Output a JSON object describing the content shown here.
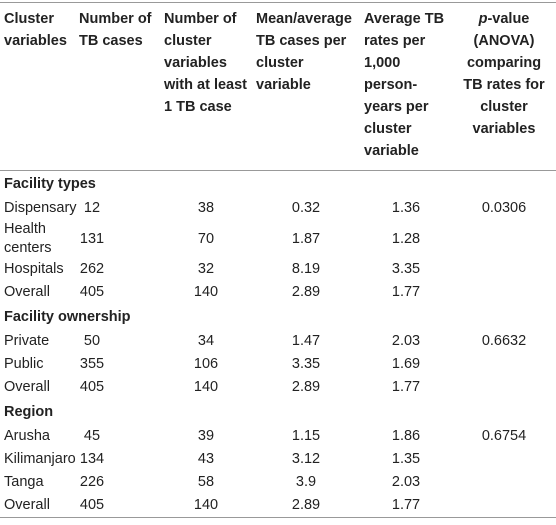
{
  "table": {
    "headers": [
      {
        "text": "Cluster variables"
      },
      {
        "text": "Number of TB cases"
      },
      {
        "text": "Number of cluster variables with at least 1 TB case"
      },
      {
        "text": "Mean/average TB cases per cluster variable"
      },
      {
        "text": "Average TB rates per 1,000 person-years per cluster variable"
      },
      {
        "italic": "p",
        "text": "-value (ANOVA) comparing TB rates for cluster variables"
      }
    ],
    "sections": [
      {
        "title": "Facility types",
        "p_value": "0.0306",
        "rows": [
          [
            "Dispensary",
            "12",
            "38",
            "0.32",
            "1.36"
          ],
          [
            "Health centers",
            "131",
            "70",
            "1.87",
            "1.28"
          ],
          [
            "Hospitals",
            "262",
            "32",
            "8.19",
            "3.35"
          ],
          [
            "Overall",
            "405",
            "140",
            "2.89",
            "1.77"
          ]
        ]
      },
      {
        "title": "Facility ownership",
        "p_value": "0.6632",
        "rows": [
          [
            "Private",
            "50",
            "34",
            "1.47",
            "2.03"
          ],
          [
            "Public",
            "355",
            "106",
            "3.35",
            "1.69"
          ],
          [
            "Overall",
            "405",
            "140",
            "2.89",
            "1.77"
          ]
        ]
      },
      {
        "title": "Region",
        "p_value": "0.6754",
        "rows": [
          [
            "Arusha",
            "45",
            "39",
            "1.15",
            "1.86"
          ],
          [
            "Kilimanjaro",
            "134",
            "43",
            "3.12",
            "1.35"
          ],
          [
            "Tanga",
            "226",
            "58",
            "3.9",
            "2.03"
          ],
          [
            "Overall",
            "405",
            "140",
            "2.89",
            "1.77"
          ]
        ]
      }
    ]
  }
}
